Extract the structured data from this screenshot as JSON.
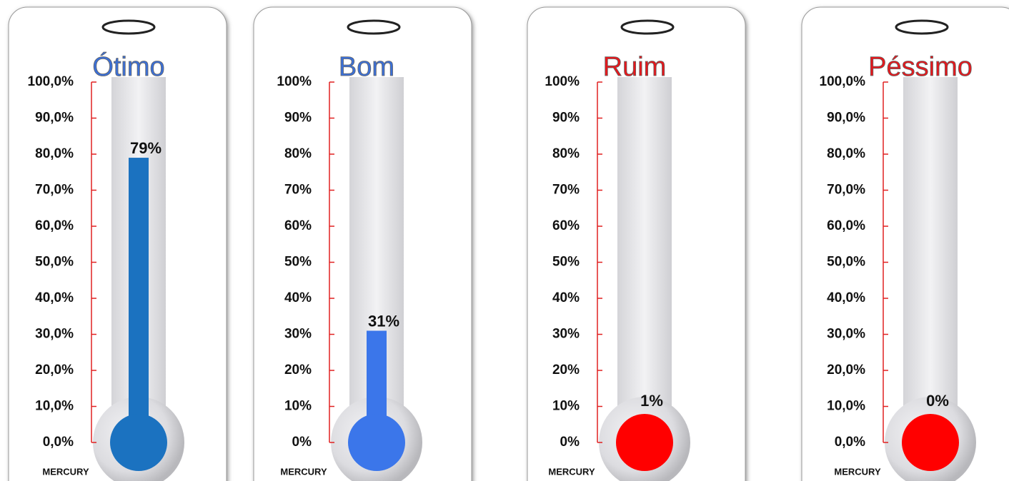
{
  "chart_data": [
    {
      "type": "thermometer",
      "title": "Ótimo",
      "title_color": "#3a6fd8",
      "color": "#1b72c0",
      "values": [
        79
      ],
      "value_labels": [
        "79%"
      ],
      "x_label": "MERCURY",
      "ylim": [
        0,
        100
      ],
      "yticks": [
        {
          "value": 0,
          "label": "0,0%"
        },
        {
          "value": 10,
          "label": "10,0%"
        },
        {
          "value": 20,
          "label": "20,0%"
        },
        {
          "value": 30,
          "label": "30,0%"
        },
        {
          "value": 40,
          "label": "40,0%"
        },
        {
          "value": 50,
          "label": "50,0%"
        },
        {
          "value": 60,
          "label": "60,0%"
        },
        {
          "value": 70,
          "label": "70,0%"
        },
        {
          "value": 80,
          "label": "80,0%"
        },
        {
          "value": 90,
          "label": "90,0%"
        },
        {
          "value": 100,
          "label": "100,0%"
        }
      ]
    },
    {
      "type": "thermometer",
      "title": "Bom",
      "title_color": "#3a6fd8",
      "color": "#3b76ea",
      "values": [
        31
      ],
      "value_labels": [
        "31%"
      ],
      "x_label": "MERCURY",
      "ylim": [
        0,
        100
      ],
      "yticks": [
        {
          "value": 0,
          "label": "0%"
        },
        {
          "value": 10,
          "label": "10%"
        },
        {
          "value": 20,
          "label": "20%"
        },
        {
          "value": 30,
          "label": "30%"
        },
        {
          "value": 40,
          "label": "40%"
        },
        {
          "value": 50,
          "label": "50%"
        },
        {
          "value": 60,
          "label": "60%"
        },
        {
          "value": 70,
          "label": "70%"
        },
        {
          "value": 80,
          "label": "80%"
        },
        {
          "value": 90,
          "label": "90%"
        },
        {
          "value": 100,
          "label": "100%"
        }
      ]
    },
    {
      "type": "thermometer",
      "title": "Ruim",
      "title_color": "#e8161b",
      "color": "#ff0000",
      "values": [
        1
      ],
      "value_labels": [
        "1%"
      ],
      "x_label": "MERCURY",
      "ylim": [
        0,
        100
      ],
      "yticks": [
        {
          "value": 0,
          "label": "0%"
        },
        {
          "value": 10,
          "label": "10%"
        },
        {
          "value": 20,
          "label": "20%"
        },
        {
          "value": 30,
          "label": "30%"
        },
        {
          "value": 40,
          "label": "40%"
        },
        {
          "value": 50,
          "label": "50%"
        },
        {
          "value": 60,
          "label": "60%"
        },
        {
          "value": 70,
          "label": "70%"
        },
        {
          "value": 80,
          "label": "80%"
        },
        {
          "value": 90,
          "label": "90%"
        },
        {
          "value": 100,
          "label": "100%"
        }
      ]
    },
    {
      "type": "thermometer",
      "title": "Péssimo",
      "title_color": "#e8161b",
      "color": "#ff0000",
      "values": [
        0
      ],
      "value_labels": [
        "0%"
      ],
      "x_label": "MERCURY",
      "ylim": [
        0,
        100
      ],
      "yticks": [
        {
          "value": 0,
          "label": "0,0%"
        },
        {
          "value": 10,
          "label": "10,0%"
        },
        {
          "value": 20,
          "label": "20,0%"
        },
        {
          "value": 30,
          "label": "30,0%"
        },
        {
          "value": 40,
          "label": "40,0%"
        },
        {
          "value": 50,
          "label": "50,0%"
        },
        {
          "value": 60,
          "label": "60,0%"
        },
        {
          "value": 70,
          "label": "70,0%"
        },
        {
          "value": 80,
          "label": "80,0%"
        },
        {
          "value": 90,
          "label": "90,0%"
        },
        {
          "value": 100,
          "label": "100,0%"
        }
      ]
    }
  ]
}
